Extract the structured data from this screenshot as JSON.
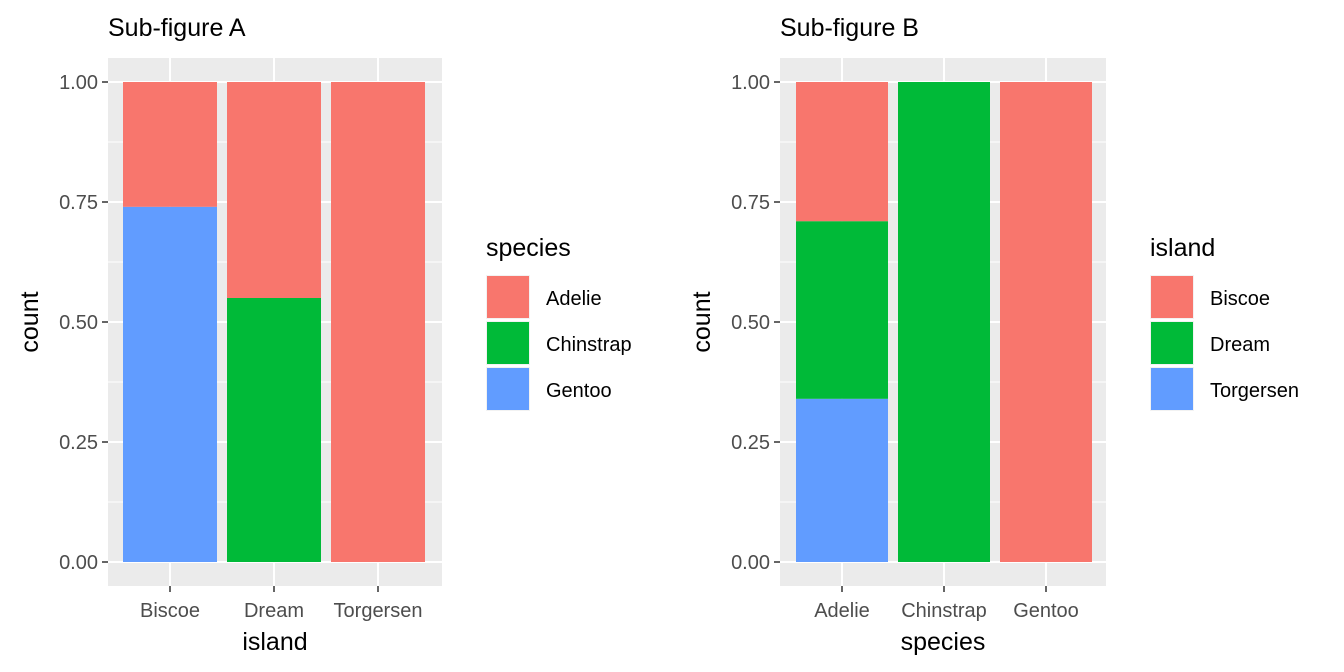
{
  "chart_data": [
    {
      "type": "bar",
      "stacked": true,
      "position": "fill",
      "title": "Sub-figure A",
      "xlabel": "island",
      "ylabel": "count",
      "categories": [
        "Biscoe",
        "Dream",
        "Torgersen"
      ],
      "ylim": [
        0,
        1
      ],
      "yticks": [
        "0.00",
        "0.25",
        "0.50",
        "0.75",
        "1.00"
      ],
      "grid": true,
      "legend": {
        "title": "species",
        "placement": "right",
        "entries": [
          "Adelie",
          "Chinstrap",
          "Gentoo"
        ]
      },
      "series": [
        {
          "name": "Adelie",
          "color": "#F8766D",
          "values": [
            0.26,
            0.45,
            1.0
          ]
        },
        {
          "name": "Chinstrap",
          "color": "#00BA38",
          "values": [
            0,
            0.55,
            0
          ]
        },
        {
          "name": "Gentoo",
          "color": "#619CFF",
          "values": [
            0.74,
            0,
            0
          ]
        }
      ]
    },
    {
      "type": "bar",
      "stacked": true,
      "position": "fill",
      "title": "Sub-figure B",
      "xlabel": "species",
      "ylabel": "count",
      "categories": [
        "Adelie",
        "Chinstrap",
        "Gentoo"
      ],
      "ylim": [
        0,
        1
      ],
      "yticks": [
        "0.00",
        "0.25",
        "0.50",
        "0.75",
        "1.00"
      ],
      "grid": true,
      "legend": {
        "title": "island",
        "placement": "right",
        "entries": [
          "Biscoe",
          "Dream",
          "Torgersen"
        ]
      },
      "series": [
        {
          "name": "Biscoe",
          "color": "#F8766D",
          "values": [
            0.29,
            0,
            1.0
          ]
        },
        {
          "name": "Dream",
          "color": "#00BA38",
          "values": [
            0.37,
            1.0,
            0
          ]
        },
        {
          "name": "Torgersen",
          "color": "#619CFF",
          "values": [
            0.34,
            0,
            0
          ]
        }
      ]
    }
  ]
}
